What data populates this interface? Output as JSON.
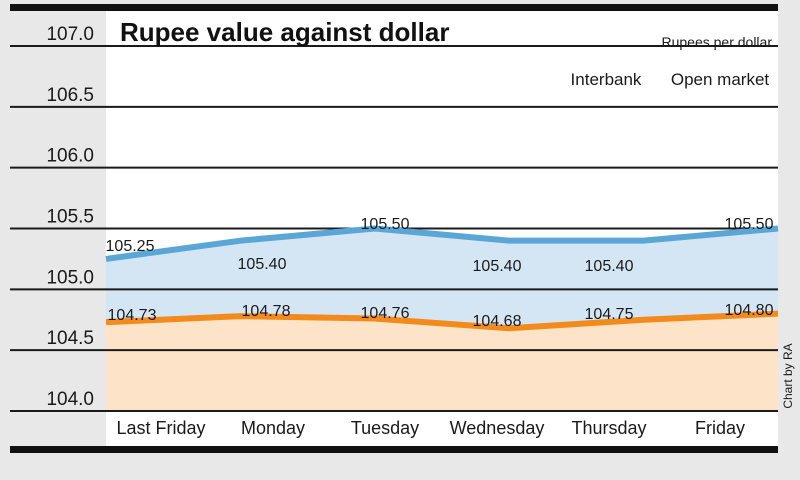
{
  "chart_data": {
    "type": "area",
    "title": "Rupee value against dollar",
    "unit_label": "Rupees per dollar",
    "credit": "Chart by RA",
    "categories": [
      "Last Friday",
      "Monday",
      "Tuesday",
      "Wednesday",
      "Thursday",
      "Friday"
    ],
    "y_ticks": [
      "107.0",
      "106.5",
      "106.0",
      "105.5",
      "105.0",
      "104.5",
      "104.0"
    ],
    "ylim": [
      104.0,
      107.0
    ],
    "grid": true,
    "legend_position": "top-right",
    "series": [
      {
        "name": "Interbank",
        "values": [
          104.73,
          104.78,
          104.76,
          104.68,
          104.75,
          104.8
        ],
        "labels": [
          "104.73",
          "104.78",
          "104.76",
          "104.68",
          "104.75",
          "104.80"
        ],
        "color": "#f28a1c",
        "fill": "#fde3c8"
      },
      {
        "name": "Open market",
        "values": [
          105.25,
          105.4,
          105.5,
          105.4,
          105.4,
          105.5
        ],
        "labels": [
          "105.25",
          "105.40",
          "105.50",
          "105.40",
          "105.40",
          "105.50"
        ],
        "color": "#5aa7d6",
        "fill": "#d4e6f4"
      }
    ],
    "colors": {
      "background": "#e8e8e8",
      "plot": "#ffffff",
      "grid": "#1a1a1a"
    }
  }
}
